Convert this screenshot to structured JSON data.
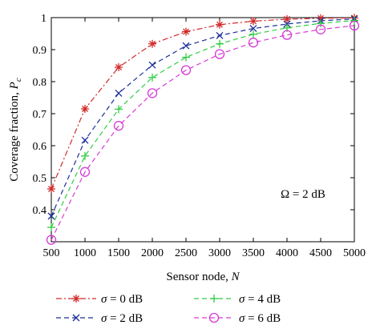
{
  "chart_data": {
    "type": "line",
    "xlabel_text": "Sensor node, ",
    "xlabel_var": "N",
    "ylabel_text": "Coverage fraction, ",
    "ylabel_var": "P",
    "ylabel_sub": "c",
    "xlim": [
      500,
      5000
    ],
    "ylim": [
      0.3,
      1.0
    ],
    "x_ticks": [
      500,
      1000,
      1500,
      2000,
      2500,
      3000,
      3500,
      4000,
      4500,
      5000
    ],
    "y_ticks": [
      0.4,
      0.5,
      0.6,
      0.7,
      0.8,
      0.9,
      1.0
    ],
    "y_tick_labels": [
      "0.4",
      "0.5",
      "0.6",
      "0.7",
      "0.8",
      "0.9",
      "1"
    ],
    "grid": false,
    "annotation": "Ω = 2 dB",
    "legend_position": "bottom-outside",
    "x": [
      500,
      1000,
      1500,
      2000,
      2500,
      3000,
      3500,
      4000,
      4500,
      5000
    ],
    "series": [
      {
        "name": "σ = 0 dB",
        "sym": "σ",
        "rest": " = 0 dB",
        "color": "#d22b2b",
        "dash": "7,3,2,3",
        "marker": "asterisk",
        "values": [
          0.465,
          0.715,
          0.845,
          0.918,
          0.956,
          0.978,
          0.989,
          0.995,
          0.998,
          0.999
        ]
      },
      {
        "name": "σ = 2 dB",
        "sym": "σ",
        "rest": " = 2 dB",
        "color": "#1c2f9a",
        "dash": "6,4",
        "marker": "x",
        "values": [
          0.38,
          0.617,
          0.764,
          0.852,
          0.912,
          0.944,
          0.966,
          0.98,
          0.99,
          0.996
        ]
      },
      {
        "name": "σ = 4 dB",
        "sym": "σ",
        "rest": " = 4 dB",
        "color": "#2ecc40",
        "dash": "6,4",
        "marker": "plus",
        "values": [
          0.345,
          0.568,
          0.714,
          0.813,
          0.876,
          0.918,
          0.948,
          0.968,
          0.982,
          0.991
        ]
      },
      {
        "name": "σ = 6 dB",
        "sym": "σ",
        "rest": " = 6 dB",
        "color": "#d63ad6",
        "dash": "6,4",
        "marker": "circle",
        "values": [
          0.306,
          0.518,
          0.662,
          0.764,
          0.836,
          0.886,
          0.922,
          0.946,
          0.963,
          0.975
        ]
      }
    ]
  }
}
